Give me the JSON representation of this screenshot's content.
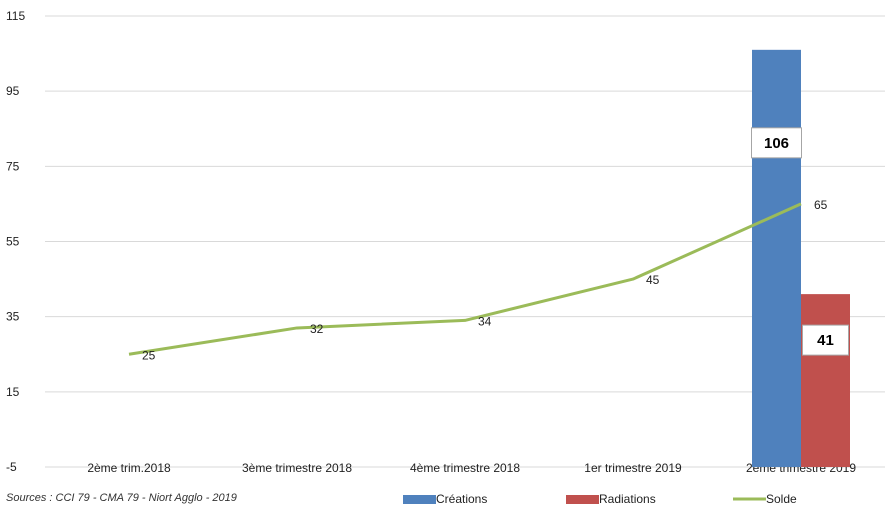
{
  "source_note": "Sources : CCI 79 - CMA 79 - Niort Agglo - 2019",
  "colors": {
    "creations": "#4f81bd",
    "radiations": "#c0504d",
    "solde": "#9bbb59",
    "grid": "#d9d9d9"
  },
  "chart_data": {
    "type": "bar",
    "categories": [
      "2ème trim.2018",
      "3ème trimestre 2018",
      "4ème trimestre 2018",
      "1er trimestre 2019",
      "2ème trimestre 2019"
    ],
    "ylim": [
      -5,
      115
    ],
    "yticks": [
      115,
      95,
      75,
      55,
      35,
      15,
      -5
    ],
    "grid": true,
    "legend_position": "bottom",
    "series": [
      {
        "name": "Créations",
        "kind": "bar",
        "values": [
          null,
          null,
          null,
          null,
          106
        ],
        "labels": [
          "",
          "",
          "",
          "",
          "106"
        ]
      },
      {
        "name": "Radiations",
        "kind": "bar",
        "values": [
          null,
          null,
          null,
          null,
          41
        ],
        "labels": [
          "",
          "",
          "",
          "",
          "41"
        ]
      },
      {
        "name": "Solde",
        "kind": "line",
        "values": [
          25,
          32,
          34,
          45,
          65
        ],
        "labels": [
          "25",
          "32",
          "34",
          "45",
          "65"
        ]
      }
    ]
  }
}
